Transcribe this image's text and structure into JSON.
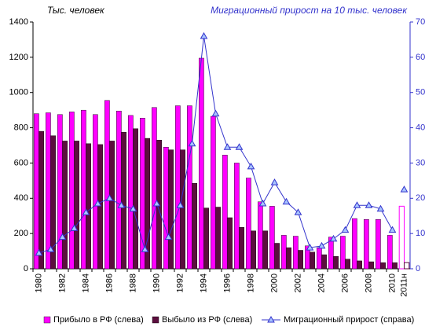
{
  "chart_data": {
    "type": "bar",
    "left_label": "Тыс. человек",
    "right_label": "Миграционный прирост на 10 тыс. человек",
    "categories": [
      "1980",
      null,
      "1982",
      null,
      "1984",
      null,
      "1986",
      null,
      "1988",
      null,
      "1990",
      null,
      "1992",
      null,
      "1994",
      null,
      "1996",
      null,
      "1998",
      null,
      "2000",
      null,
      "2002",
      null,
      "2004",
      null,
      "2006",
      null,
      "2008",
      null,
      "2010",
      "2011н"
    ],
    "series": [
      {
        "name": "Прибыло в РФ (слева)",
        "color": "#ff00ff",
        "values": [
          880,
          885,
          875,
          890,
          900,
          875,
          955,
          895,
          870,
          855,
          915,
          690,
          925,
          925,
          1195,
          865,
          645,
          600,
          515,
          380,
          355,
          190,
          185,
          130,
          120,
          180,
          185,
          285,
          280,
          280,
          190,
          355
        ]
      },
      {
        "name": "Выбыло из РФ (слева)",
        "color": "#5c0e3e",
        "values": [
          780,
          755,
          725,
          725,
          710,
          705,
          725,
          775,
          795,
          740,
          730,
          675,
          675,
          485,
          345,
          350,
          290,
          235,
          215,
          215,
          145,
          120,
          105,
          95,
          80,
          70,
          55,
          45,
          40,
          35,
          35,
          35
        ]
      },
      {
        "name": "Миграционный прирост (справа)",
        "color": "#3333cc",
        "axis": "y2",
        "values": [
          4.5,
          5.5,
          9,
          11.5,
          16,
          18.5,
          20,
          18,
          17,
          5.5,
          18.5,
          9,
          18,
          35.5,
          66,
          44,
          34.5,
          34.5,
          29,
          18.5,
          24.5,
          19,
          16,
          6,
          6.5,
          8.5,
          11,
          18,
          18,
          17,
          11,
          22.5
        ]
      }
    ],
    "last_is_estimate": true,
    "ylim": [
      0,
      1400
    ],
    "yticks": [
      0,
      200,
      400,
      600,
      800,
      1000,
      1200,
      1400
    ],
    "y2lim": [
      0,
      70
    ],
    "y2ticks": [
      0,
      10,
      20,
      30,
      40,
      50,
      60,
      70
    ]
  }
}
